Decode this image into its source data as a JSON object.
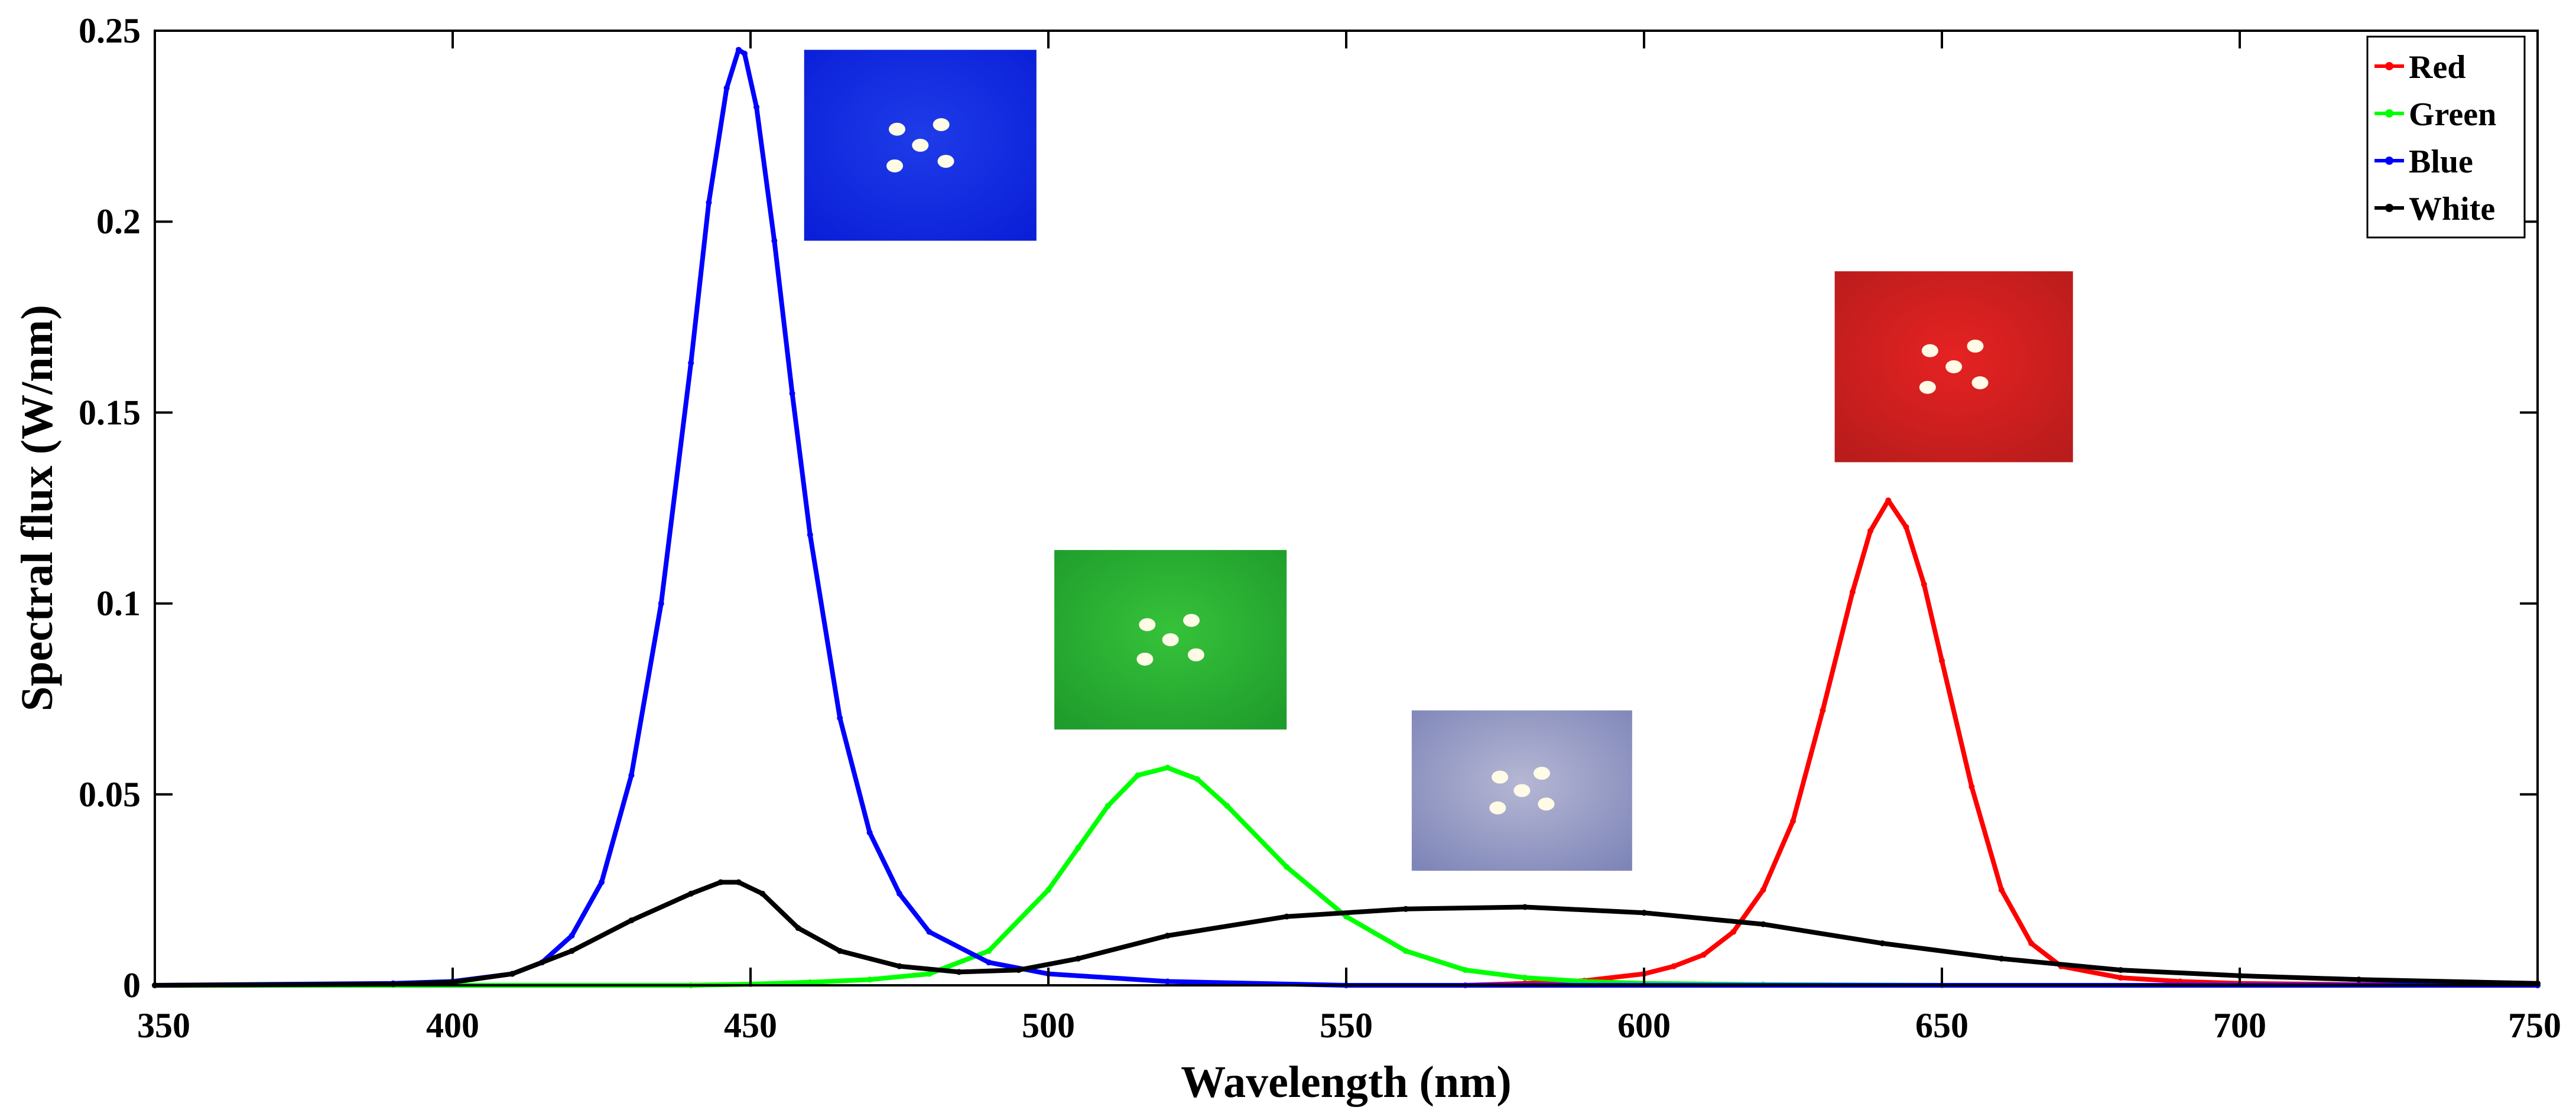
{
  "chart_data": {
    "type": "line",
    "xlabel": "Wavelength (nm)",
    "ylabel": "Spectral flux (W/nm)",
    "xlim": [
      350,
      750
    ],
    "ylim": [
      0,
      0.25
    ],
    "xticks": [
      350,
      400,
      450,
      500,
      550,
      600,
      650,
      700,
      750
    ],
    "xtick_labels": [
      "350",
      "400",
      "450",
      "500",
      "550",
      "600",
      "650",
      "700",
      "750"
    ],
    "yticks": [
      0,
      0.05,
      0.1,
      0.15,
      0.2,
      0.25
    ],
    "ytick_labels": [
      "0",
      "0.05",
      "0.1",
      "0.15",
      "0.2",
      "0.25"
    ],
    "grid": false,
    "legend_position": "top-right",
    "series": [
      {
        "name": "Red",
        "color": "#ff0000",
        "x": [
          570,
          580,
          590,
          600,
          605,
          610,
          615,
          620,
          625,
          630,
          635,
          638,
          641,
          644,
          647,
          650,
          655,
          660,
          665,
          670,
          680,
          690,
          700,
          720,
          750
        ],
        "y": [
          0.0,
          0.0005,
          0.0012,
          0.003,
          0.005,
          0.008,
          0.014,
          0.025,
          0.043,
          0.072,
          0.103,
          0.119,
          0.127,
          0.12,
          0.105,
          0.085,
          0.052,
          0.025,
          0.011,
          0.005,
          0.002,
          0.001,
          0.0005,
          0.0002,
          0.0
        ]
      },
      {
        "name": "Green",
        "color": "#00ff00",
        "x": [
          350,
          440,
          450,
          460,
          470,
          480,
          490,
          500,
          505,
          510,
          515,
          520,
          525,
          530,
          540,
          550,
          560,
          570,
          580,
          590,
          600,
          620,
          650,
          750
        ],
        "y": [
          0.0,
          0.0,
          0.0003,
          0.0008,
          0.0015,
          0.003,
          0.009,
          0.025,
          0.036,
          0.047,
          0.055,
          0.057,
          0.054,
          0.047,
          0.031,
          0.018,
          0.009,
          0.004,
          0.002,
          0.001,
          0.0005,
          0.0002,
          0.0,
          0.0
        ]
      },
      {
        "name": "Blue",
        "color": "#0000ff",
        "x": [
          350,
          390,
          400,
          410,
          415,
          420,
          425,
          430,
          435,
          440,
          443,
          446,
          448,
          449,
          451,
          454,
          457,
          460,
          465,
          470,
          475,
          480,
          490,
          500,
          520,
          550,
          750
        ],
        "y": [
          0.0,
          0.0005,
          0.001,
          0.003,
          0.006,
          0.013,
          0.027,
          0.055,
          0.1,
          0.163,
          0.205,
          0.235,
          0.245,
          0.244,
          0.23,
          0.195,
          0.155,
          0.118,
          0.07,
          0.04,
          0.024,
          0.014,
          0.006,
          0.003,
          0.001,
          0.0,
          0.0
        ]
      },
      {
        "name": "White",
        "color": "#000000",
        "x": [
          350,
          390,
          400,
          410,
          420,
          430,
          440,
          445,
          448,
          452,
          458,
          465,
          475,
          485,
          495,
          505,
          520,
          540,
          560,
          580,
          600,
          620,
          640,
          660,
          680,
          700,
          720,
          750
        ],
        "y": [
          0.0,
          0.0003,
          0.0008,
          0.003,
          0.009,
          0.017,
          0.024,
          0.027,
          0.027,
          0.024,
          0.015,
          0.009,
          0.005,
          0.0035,
          0.004,
          0.007,
          0.013,
          0.018,
          0.02,
          0.0205,
          0.019,
          0.016,
          0.011,
          0.007,
          0.004,
          0.0025,
          0.0015,
          0.0005
        ]
      }
    ],
    "images": [
      {
        "name": "blue-led-photo",
        "x": [
          459,
          498
        ],
        "y": [
          0.195,
          0.245
        ],
        "colors": [
          "#0a1fd8",
          "#1f3ce8"
        ]
      },
      {
        "name": "green-led-photo",
        "x": [
          501,
          540
        ],
        "y": [
          0.067,
          0.114
        ],
        "colors": [
          "#1f9c2c",
          "#36c23a"
        ]
      },
      {
        "name": "white-led-photo",
        "x": [
          561,
          598
        ],
        "y": [
          0.03,
          0.072
        ],
        "colors": [
          "#7e86b8",
          "#b6b7d4"
        ]
      },
      {
        "name": "red-led-photo",
        "x": [
          632,
          672
        ],
        "y": [
          0.137,
          0.187
        ],
        "colors": [
          "#b81c1c",
          "#e62222"
        ]
      }
    ]
  }
}
